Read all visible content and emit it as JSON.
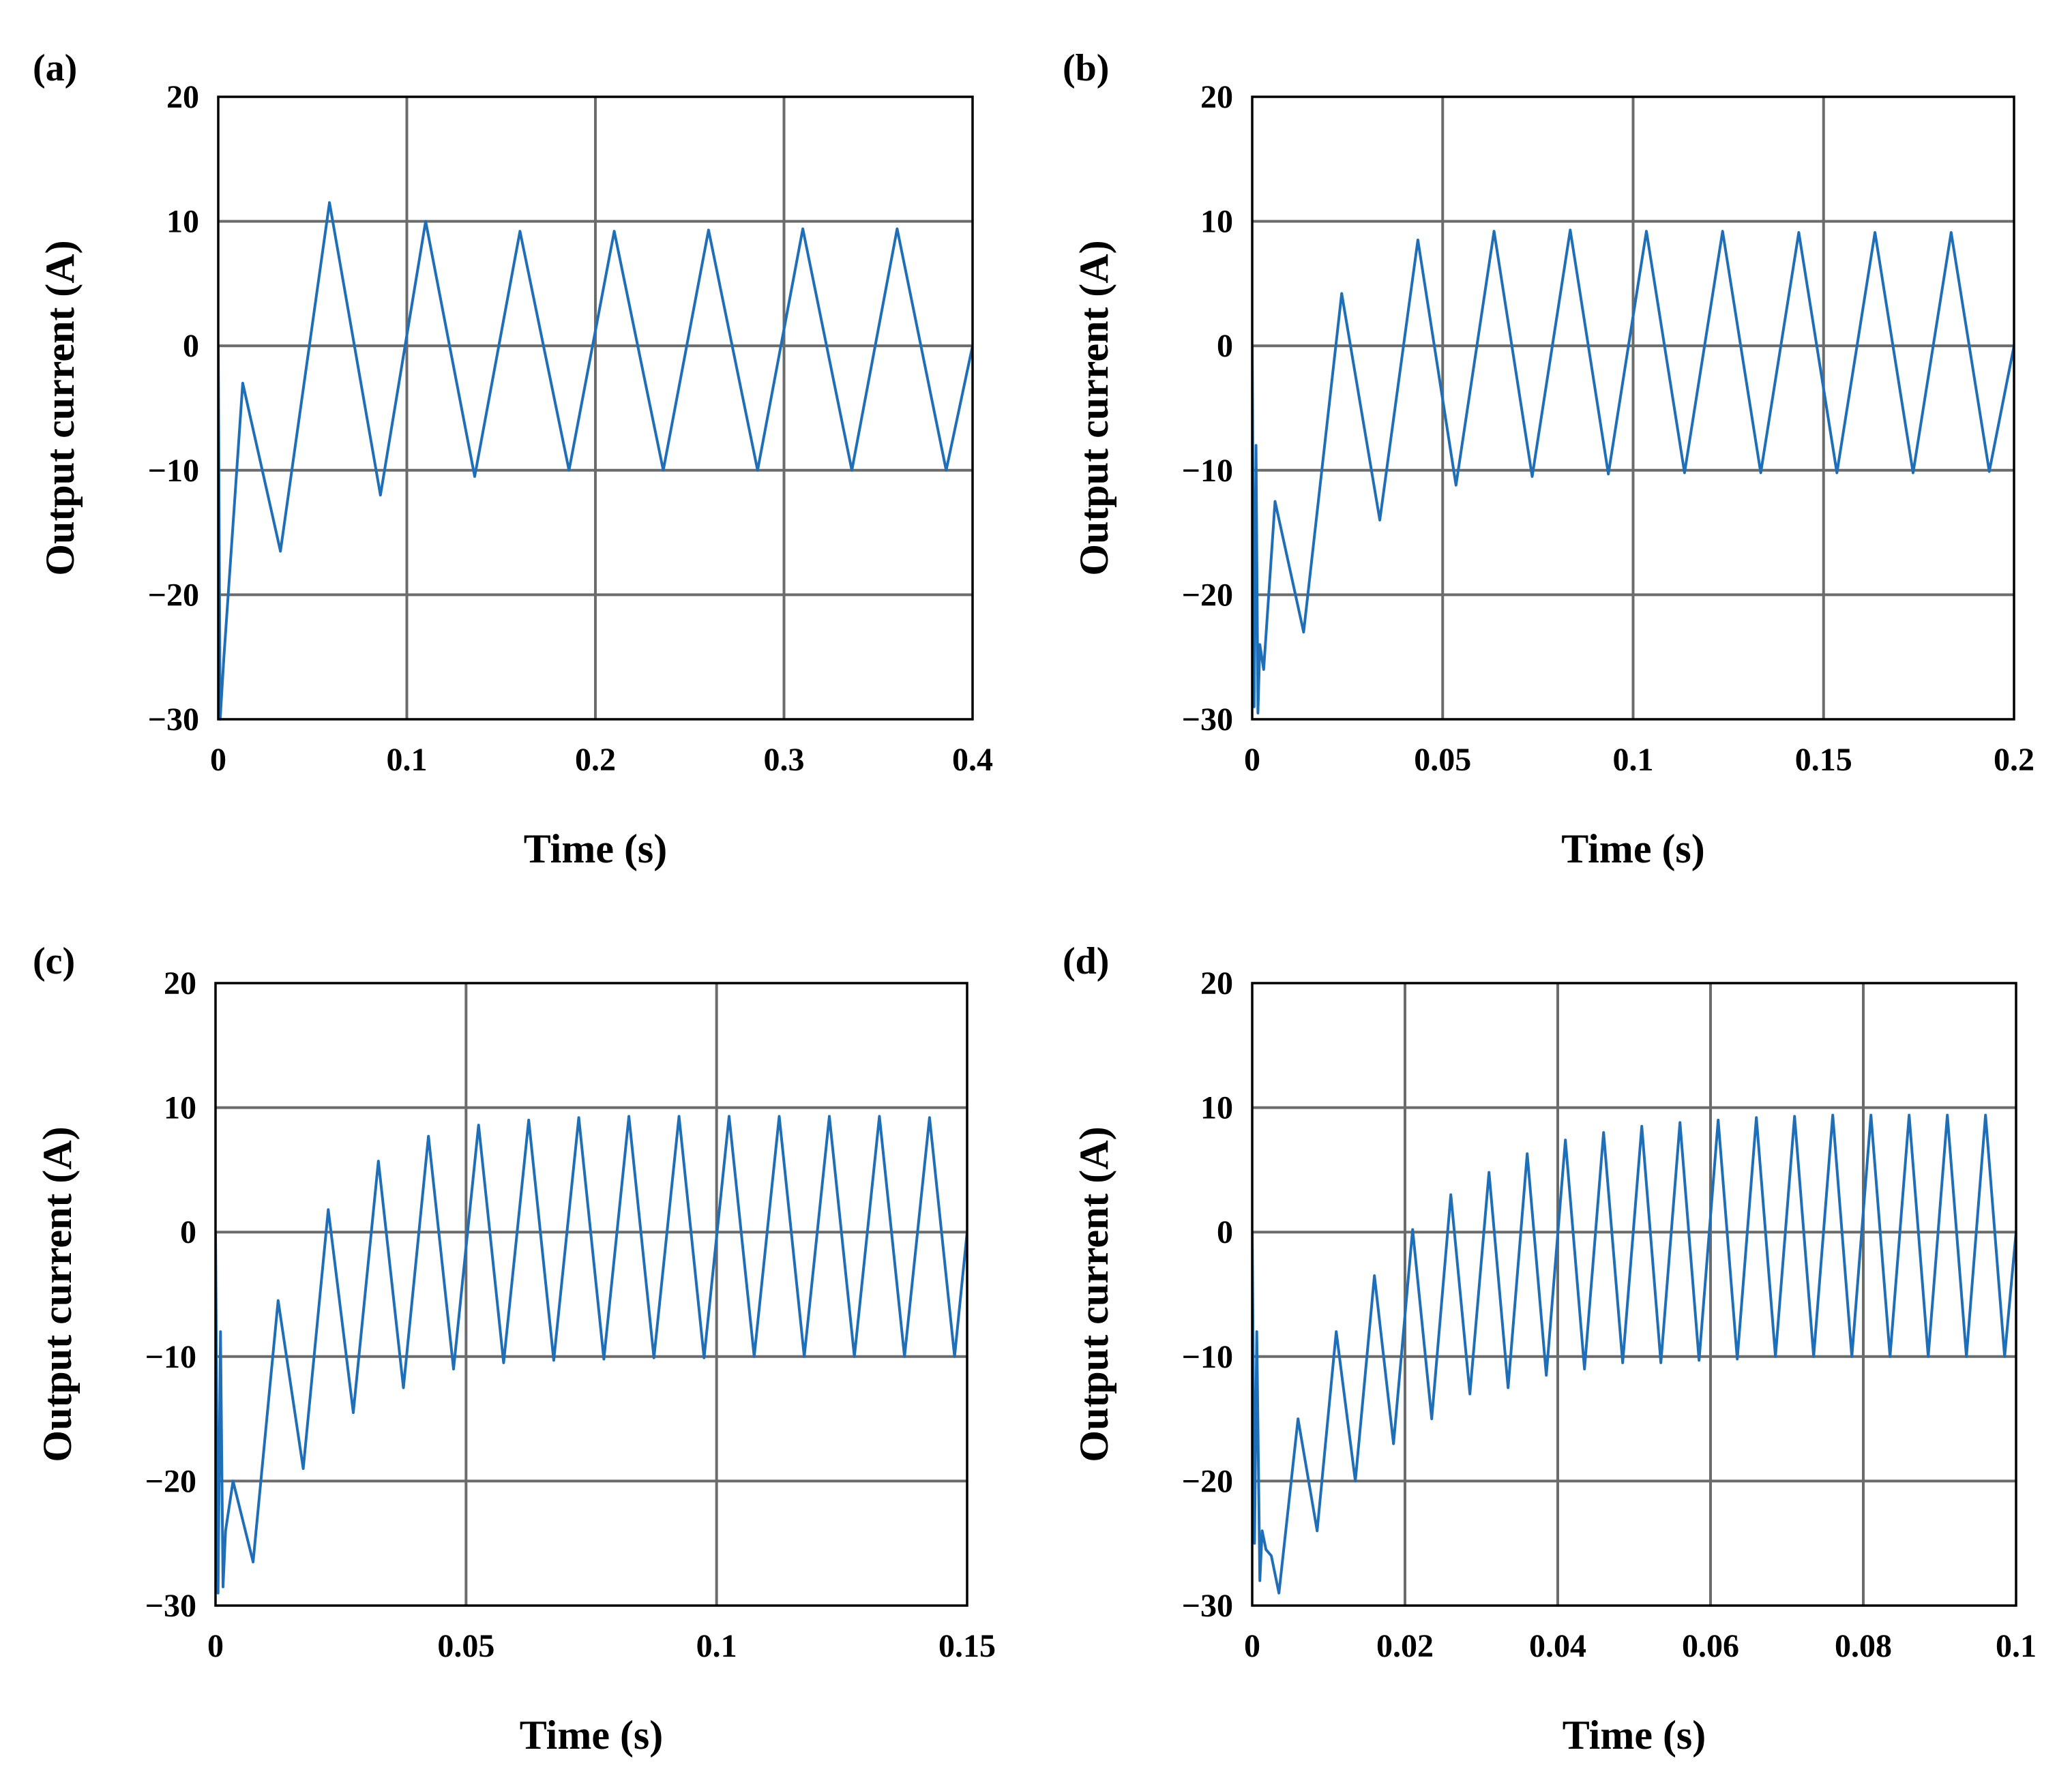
{
  "chart_data": [
    {
      "panel": "(a)",
      "type": "line",
      "xlabel": "Time (s)",
      "ylabel": "Output current (A)",
      "xlim": [
        0,
        0.4
      ],
      "ylim": [
        -30,
        20
      ],
      "xticks": [
        0,
        0.1,
        0.2,
        0.3,
        0.4
      ],
      "xtick_labels": [
        "0",
        "0.1",
        "0.2",
        "0.3",
        "0.4"
      ],
      "yticks": [
        -30,
        -20,
        -10,
        0,
        10,
        20
      ],
      "ytick_labels": [
        "−30",
        "−20",
        "−10",
        "0",
        "10",
        "20"
      ],
      "grid": true,
      "series": [
        {
          "color": "#1f6fb8",
          "x": [
            0,
            0.001,
            0.003,
            0.013,
            0.033,
            0.059,
            0.086,
            0.11,
            0.136,
            0.16,
            0.186,
            0.21,
            0.236,
            0.26,
            0.286,
            0.31,
            0.336,
            0.36,
            0.386,
            0.4
          ],
          "y": [
            0,
            -30,
            -25,
            -3,
            -16.5,
            11.5,
            -12,
            10,
            -10.5,
            9.2,
            -10,
            9.2,
            -10,
            9.3,
            -10,
            9.4,
            -10,
            9.4,
            -10,
            0
          ]
        }
      ]
    },
    {
      "panel": "(b)",
      "type": "line",
      "xlabel": "Time (s)",
      "ylabel": "Output current (A)",
      "xlim": [
        0,
        0.2
      ],
      "ylim": [
        -30,
        20
      ],
      "xticks": [
        0,
        0.05,
        0.1,
        0.15,
        0.2
      ],
      "xtick_labels": [
        "0",
        "0.05",
        "0.1",
        "0.15",
        "0.2"
      ],
      "yticks": [
        -30,
        -20,
        -10,
        0,
        10,
        20
      ],
      "ytick_labels": [
        "−30",
        "−20",
        "−10",
        "0",
        "10",
        "20"
      ],
      "grid": true,
      "series": [
        {
          "color": "#1f6fb8",
          "x": [
            0,
            0.0005,
            0.001,
            0.0015,
            0.002,
            0.003,
            0.006,
            0.0135,
            0.0235,
            0.0335,
            0.0435,
            0.0535,
            0.0635,
            0.0735,
            0.0835,
            0.0935,
            0.1035,
            0.1135,
            0.1235,
            0.1335,
            0.1435,
            0.1535,
            0.1635,
            0.1735,
            0.1835,
            0.1935,
            0.2
          ],
          "y": [
            0,
            -29,
            -8,
            -29.5,
            -24,
            -26,
            -12.5,
            -23,
            4.2,
            -14,
            8.5,
            -11.2,
            9.2,
            -10.5,
            9.3,
            -10.3,
            9.2,
            -10.2,
            9.2,
            -10.2,
            9.1,
            -10.2,
            9.1,
            -10.2,
            9.1,
            -10.1,
            0
          ]
        }
      ]
    },
    {
      "panel": "(c)",
      "type": "line",
      "xlabel": "Time (s)",
      "ylabel": "Output current (A)",
      "xlim": [
        0,
        0.15
      ],
      "ylim": [
        -30,
        20
      ],
      "xticks": [
        0,
        0.05,
        0.1,
        0.15
      ],
      "xtick_labels": [
        "0",
        "0.05",
        "0.1",
        "0.15"
      ],
      "yticks": [
        -30,
        -20,
        -10,
        0,
        10,
        20
      ],
      "ytick_labels": [
        "−30",
        "−20",
        "−10",
        "0",
        "10",
        "20"
      ],
      "grid": true,
      "series": [
        {
          "color": "#1f6fb8",
          "x": [
            0,
            0.0005,
            0.001,
            0.0015,
            0.002,
            0.0035,
            0.0075,
            0.0125,
            0.0175,
            0.0225,
            0.0275,
            0.0325,
            0.0375,
            0.0425,
            0.0475,
            0.0525,
            0.0575,
            0.0625,
            0.0675,
            0.0725,
            0.0775,
            0.0825,
            0.0875,
            0.0925,
            0.0975,
            0.1025,
            0.1075,
            0.1125,
            0.1175,
            0.1225,
            0.1275,
            0.1325,
            0.1375,
            0.1425,
            0.1475,
            0.15
          ],
          "y": [
            0,
            -29,
            -8,
            -28.5,
            -24,
            -20,
            -26.5,
            -5.5,
            -19,
            1.8,
            -14.5,
            5.7,
            -12.5,
            7.7,
            -11,
            8.6,
            -10.5,
            9,
            -10.3,
            9.2,
            -10.2,
            9.3,
            -10.1,
            9.3,
            -10.1,
            9.3,
            -10,
            9.3,
            -10,
            9.3,
            -10,
            9.3,
            -10,
            9.2,
            -10,
            0
          ]
        }
      ]
    },
    {
      "panel": "(d)",
      "type": "line",
      "xlabel": "Time (s)",
      "ylabel": "Output current (A)",
      "xlim": [
        0,
        0.1
      ],
      "ylim": [
        -30,
        20
      ],
      "xticks": [
        0,
        0.02,
        0.04,
        0.06,
        0.08,
        0.1
      ],
      "xtick_labels": [
        "0",
        "0.02",
        "0.04",
        "0.06",
        "0.08",
        "0.1"
      ],
      "yticks": [
        -30,
        -20,
        -10,
        0,
        10,
        20
      ],
      "ytick_labels": [
        "−30",
        "−20",
        "−10",
        "0",
        "10",
        "20"
      ],
      "grid": true,
      "series": [
        {
          "color": "#1f6fb8",
          "x": [
            0,
            0.0003,
            0.0006,
            0.001,
            0.0013,
            0.0018,
            0.0025,
            0.0035,
            0.006,
            0.0085,
            0.011,
            0.0135,
            0.016,
            0.0185,
            0.021,
            0.0235,
            0.026,
            0.0285,
            0.031,
            0.0335,
            0.036,
            0.0385,
            0.041,
            0.0435,
            0.046,
            0.0485,
            0.051,
            0.0535,
            0.056,
            0.0585,
            0.061,
            0.0635,
            0.066,
            0.0685,
            0.071,
            0.0735,
            0.076,
            0.0785,
            0.081,
            0.0835,
            0.086,
            0.0885,
            0.091,
            0.0935,
            0.096,
            0.0985,
            0.1
          ],
          "y": [
            0,
            -25,
            -8,
            -28,
            -24,
            -25.5,
            -26,
            -29,
            -15,
            -24,
            -8,
            -20,
            -3.5,
            -17,
            0.2,
            -15,
            3,
            -13,
            4.8,
            -12.5,
            6.3,
            -11.5,
            7.4,
            -11,
            8,
            -10.5,
            8.5,
            -10.5,
            8.8,
            -10.3,
            9,
            -10.2,
            9.2,
            -10,
            9.3,
            -10,
            9.4,
            -10,
            9.4,
            -10,
            9.4,
            -10,
            9.4,
            -10,
            9.4,
            -10,
            0
          ]
        }
      ]
    }
  ]
}
